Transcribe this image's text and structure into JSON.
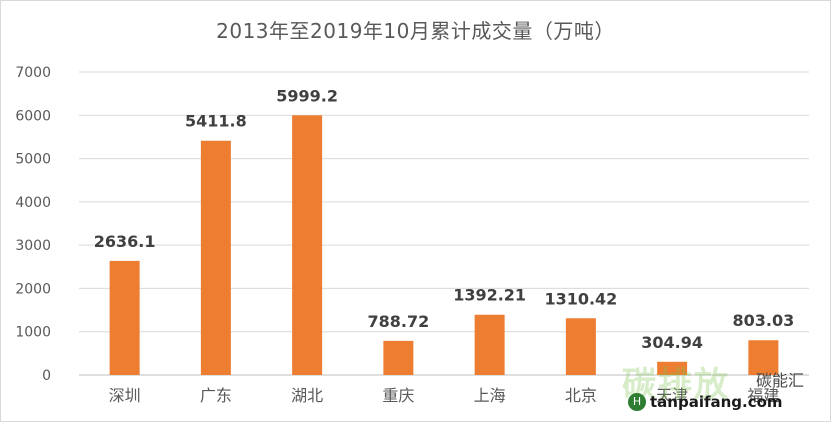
{
  "chart_data": {
    "type": "bar",
    "title": "2013年至2019年10月累计成交量（万吨）",
    "categories": [
      "深圳",
      "广东",
      "湖北",
      "重庆",
      "上海",
      "北京",
      "天津",
      "福建"
    ],
    "values": [
      2636.1,
      5411.8,
      5999.2,
      788.72,
      1392.21,
      1310.42,
      304.94,
      803.03
    ],
    "value_labels": [
      "2636.1",
      "5411.8",
      "5999.2",
      "788.72",
      "1392.21",
      "1310.42",
      "304.94",
      "803.03"
    ],
    "ylim": [
      0,
      7000
    ],
    "yticks": [
      "0",
      "1000",
      "2000",
      "3000",
      "4000",
      "5000",
      "6000",
      "7000"
    ],
    "grid": true,
    "bar_color": "#ED7D31"
  },
  "watermark": {
    "big_text": "碳排放",
    "sub_text": "碳能汇",
    "url": "tanpaifang.com",
    "logo_text": "H"
  }
}
